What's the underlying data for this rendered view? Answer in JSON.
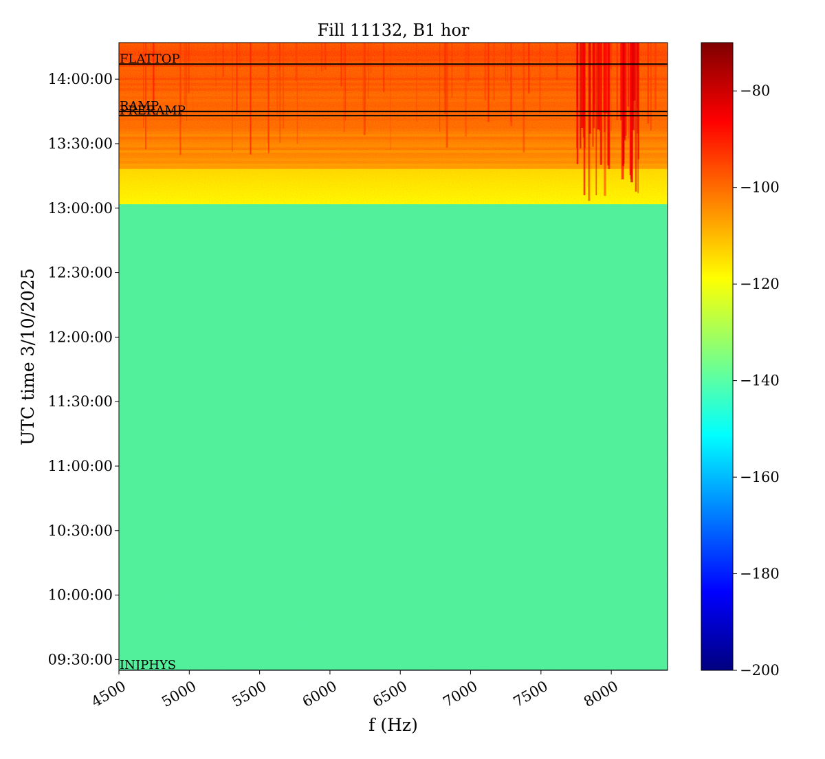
{
  "chart_data": {
    "type": "heatmap",
    "title": "Fill 11132, B1 hor",
    "xlabel": "f (Hz)",
    "ylabel": "UTC time 3/10/2025",
    "xlim": [
      4500,
      8400
    ],
    "ylim": [
      "09:25:00",
      "14:17:00"
    ],
    "x_ticks": [
      4500,
      5000,
      5500,
      6000,
      6500,
      7000,
      7500,
      8000
    ],
    "y_ticks": [
      "09:30:00",
      "10:00:00",
      "10:30:00",
      "11:00:00",
      "11:30:00",
      "12:00:00",
      "12:30:00",
      "13:00:00",
      "13:30:00",
      "14:00:00"
    ],
    "colorbar": {
      "colormap": "jet",
      "range": [
        -200,
        -70
      ],
      "ticks": [
        -80,
        -100,
        -120,
        -140,
        -160,
        -180,
        -200
      ]
    },
    "background_level": -140,
    "active_region": {
      "start_time": "13:02:00",
      "level_range": [
        -110,
        -95
      ]
    },
    "events": [
      {
        "label": "INJPHYS",
        "time": "09:25:00"
      },
      {
        "label": "PRERAMP",
        "time": "13:43:00"
      },
      {
        "label": "RAMP",
        "time": "13:45:00"
      },
      {
        "label": "FLATTOP",
        "time": "14:07:00"
      }
    ]
  }
}
